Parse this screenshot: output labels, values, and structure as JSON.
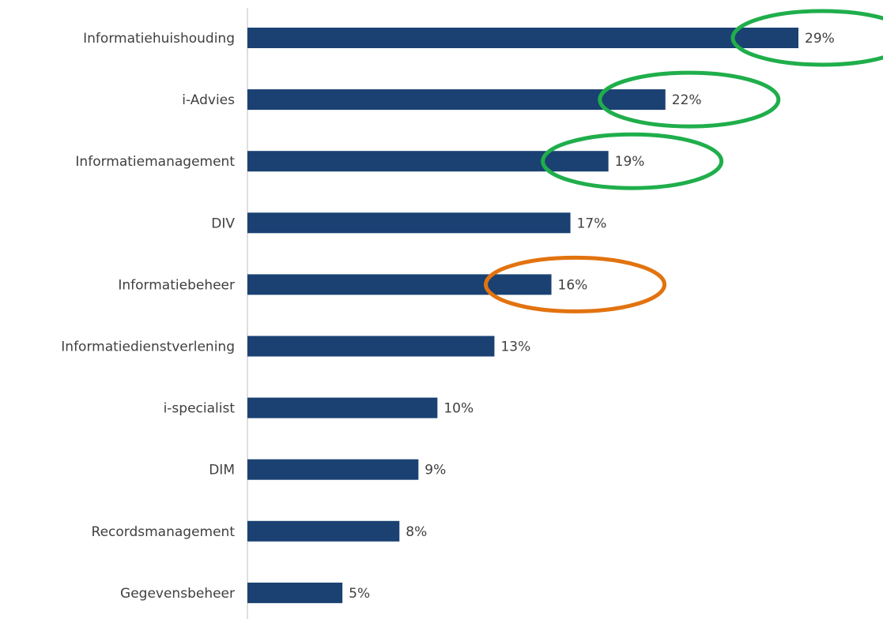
{
  "chart_data": {
    "type": "bar",
    "orientation": "horizontal",
    "categories": [
      "Informatiehuishouding",
      "i-Advies",
      "Informatiemanagement",
      "DIV",
      "Informatiebeheer",
      "Informatiedienstverlening",
      "i-specialist",
      "DIM",
      "Recordsmanagement",
      "Gegevensbeheer"
    ],
    "values": [
      29,
      22,
      19,
      17,
      16,
      13,
      10,
      9,
      8,
      5
    ],
    "value_labels": [
      "29%",
      "22%",
      "19%",
      "17%",
      "16%",
      "13%",
      "10%",
      "9%",
      "8%",
      "5%"
    ],
    "color": "#1a4172",
    "highlight_colors": [
      "#1fae4b",
      "#1fae4b",
      "#1fae4b",
      null,
      "#e2730f",
      null,
      null,
      null,
      null,
      null
    ]
  }
}
